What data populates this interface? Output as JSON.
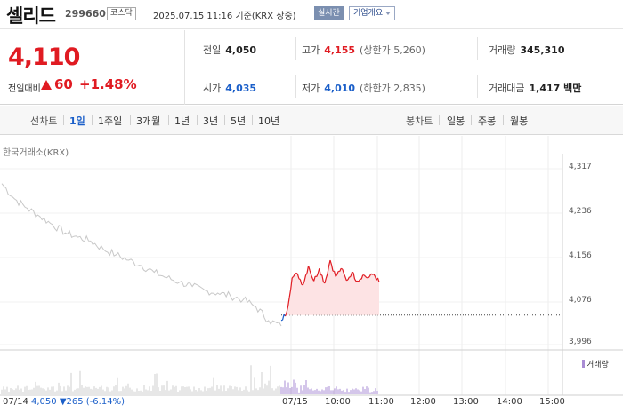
{
  "header": {
    "name": "셀리드",
    "code": "299660",
    "market": "코스닥",
    "timestamp": "2025.07.15 11:16 기준(KRX 장중)",
    "realtime": "실시간",
    "company_btn": "기업개요"
  },
  "quote": {
    "price": "4,110",
    "change_label": "전일대비",
    "change_amount": "60",
    "change_pct": "+1.48%",
    "prev_close": {
      "label": "전일",
      "value": "4,050"
    },
    "high": {
      "label": "고가",
      "value": "4,155",
      "sub": "(상한가 5,260)"
    },
    "volume": {
      "label": "거래량",
      "value": "345,310"
    },
    "open": {
      "label": "시가",
      "value": "4,035"
    },
    "low": {
      "label": "저가",
      "value": "4,010",
      "sub": "(하한가 2,835)"
    },
    "amount": {
      "label": "거래대금",
      "value": "1,417 백만"
    }
  },
  "tabs": {
    "line_label": "선차트",
    "periods": [
      "1일",
      "1주일",
      "3개월",
      "1년",
      "3년",
      "5년",
      "10년"
    ],
    "candle_label": "봉차트",
    "candles": [
      "일봉",
      "주봉",
      "월봉"
    ]
  },
  "chart": {
    "source": "한국거래소(KRX)",
    "y_ticks": [
      "4,317",
      "4,236",
      "4,156",
      "4,076",
      "3,996"
    ],
    "x_ticks": [
      "07/15",
      "10:00",
      "11:00",
      "12:00",
      "13:00",
      "14:00",
      "15:00"
    ],
    "volume_legend": "거래량",
    "prev_day": {
      "date": "07/14",
      "close": "4,050",
      "change": "▼265 (-6.14%)"
    }
  },
  "colors": {
    "up": "#e01b22",
    "down": "#1b5fc9",
    "prev_line": "#c8c8c8",
    "volume": "#a98cd4"
  },
  "chart_data": {
    "type": "line",
    "title": "",
    "ylim": [
      3996,
      4317
    ],
    "previous_day_close_reference": 4050,
    "series": [
      {
        "values": [
          4290,
          4262,
          4245,
          4230,
          4215,
          4200,
          4192,
          4185,
          4170,
          4160,
          4150,
          4140,
          4128,
          4118,
          4110,
          4102,
          4095,
          4090,
          4085,
          4078,
          4065,
          4040,
          4030
        ]
      },
      {
        "values": [
          4040,
          4055,
          4118,
          4125,
          4105,
          4140,
          4112,
          4135,
          4108,
          4150,
          4120,
          4135,
          4113,
          4128,
          4112,
          4123,
          4118,
          4125,
          4110
        ]
      }
    ]
  }
}
